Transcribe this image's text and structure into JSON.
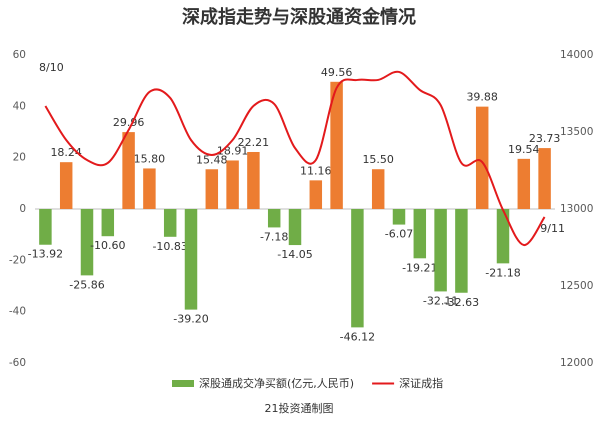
{
  "chart_data": {
    "type": "bar-line",
    "title": "深成指走势与深股通资金情况",
    "source": "21投资通制图",
    "categories": [
      "8/10",
      null,
      null,
      null,
      null,
      null,
      null,
      null,
      null,
      null,
      null,
      null,
      null,
      null,
      null,
      null,
      null,
      null,
      null,
      null,
      null,
      null,
      null,
      null,
      "9/11"
    ],
    "series": [
      {
        "name": "深股通成交净买额(亿元,人民币)",
        "type": "bar",
        "color": "#70ad47",
        "positive_color": "#ed7d31",
        "values": [
          -13.92,
          18.24,
          -25.86,
          -10.6,
          29.96,
          15.8,
          -10.83,
          -39.2,
          15.48,
          18.91,
          22.21,
          -7.18,
          -14.05,
          11.16,
          49.56,
          -46.12,
          15.5,
          -6.07,
          -19.21,
          -32.11,
          -32.63,
          39.88,
          -21.18,
          19.54,
          23.73
        ],
        "value_labels": [
          "-13.92",
          "18.24",
          "-25.86",
          "-10.60",
          "29.96",
          "15.80",
          "-10.83",
          "-39.20",
          "15.48",
          "18.91",
          "22.21",
          "-7.18",
          "-14.05",
          "11.16",
          "49.56",
          "-46.12",
          "15.50",
          "-6.07",
          "-19.21",
          "-32.11",
          "-32.63",
          "39.88",
          "-21.18",
          "19.54",
          "23.73"
        ]
      },
      {
        "name": "深证成指",
        "type": "line",
        "axis": "y2",
        "color": "#e31a1c",
        "values": [
          13669,
          13448,
          13318,
          13299,
          13513,
          13760,
          13721,
          13448,
          13351,
          13448,
          13669,
          13682,
          13396,
          13318,
          13786,
          13838,
          13838,
          13890,
          13773,
          13675,
          13299,
          13305,
          12994,
          12766,
          12948
        ]
      }
    ],
    "ylim": [
      -60,
      60
    ],
    "yticks": [
      -60,
      -40,
      -20,
      0,
      20,
      40,
      60
    ],
    "y2lim": [
      12000,
      14000
    ],
    "y2ticks": [
      12000,
      12500,
      13000,
      13500,
      14000
    ],
    "legend": "bottom"
  }
}
